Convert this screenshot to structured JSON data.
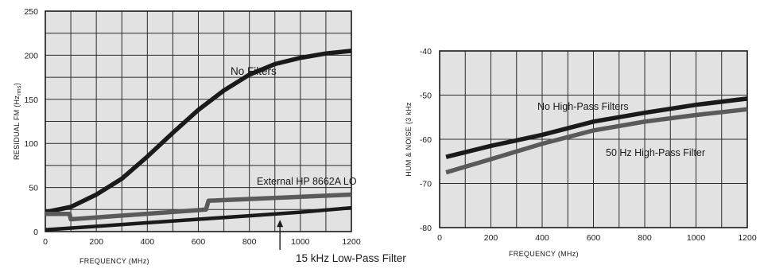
{
  "chart_data": [
    {
      "type": "line",
      "title": "",
      "xlabel": "FREQUENCY (MHz)",
      "ylabel": "RESIDUAL FM (Hz",
      "ylabel_sub": "rms",
      "ylabel_close": ")",
      "xlim": [
        0,
        1200
      ],
      "ylim": [
        0,
        250
      ],
      "xticks": [
        0,
        200,
        400,
        600,
        800,
        1000,
        1200
      ],
      "yticks": [
        0,
        50,
        100,
        150,
        200,
        250
      ],
      "grid": true,
      "series": [
        {
          "name": "No Filters",
          "color": "#1a1a1a",
          "points": [
            [
              0,
              22
            ],
            [
              100,
              28
            ],
            [
              200,
              42
            ],
            [
              300,
              60
            ],
            [
              400,
              85
            ],
            [
              500,
              112
            ],
            [
              600,
              138
            ],
            [
              700,
              160
            ],
            [
              800,
              178
            ],
            [
              900,
              190
            ],
            [
              1000,
              197
            ],
            [
              1100,
              202
            ],
            [
              1200,
              205
            ]
          ]
        },
        {
          "name": "External HP 8662A LO",
          "color": "#5a5a5a",
          "points": [
            [
              0,
              20
            ],
            [
              95,
              20
            ],
            [
              100,
              14
            ],
            [
              630,
              25
            ],
            [
              640,
              35
            ],
            [
              1200,
              42
            ]
          ]
        },
        {
          "name": "15 kHz Low-Pass Filter",
          "color": "#1a1a1a",
          "points": [
            [
              0,
              2
            ],
            [
              200,
              6
            ],
            [
              400,
              10
            ],
            [
              600,
              14
            ],
            [
              800,
              18
            ],
            [
              1000,
              22
            ],
            [
              1200,
              27
            ]
          ]
        }
      ],
      "annotations": [
        {
          "text": "No Filters",
          "x": 430,
          "y": 180
        },
        {
          "text": "External HP 8662A LO",
          "x": 800,
          "y": 51
        },
        {
          "text": "15 kHz Low-Pass Filter",
          "x": 920,
          "y": -35
        }
      ]
    },
    {
      "type": "line",
      "title": "",
      "xlabel": "FREQUENCY (MHz)",
      "ylabel": "HUM & NOISE (3 kHz",
      "xlim": [
        0,
        1200
      ],
      "ylim": [
        -80,
        -40
      ],
      "xticks": [
        0,
        200,
        400,
        600,
        800,
        1000,
        1200
      ],
      "yticks": [
        -40,
        -50,
        -60,
        -70,
        -80
      ],
      "grid": true,
      "series": [
        {
          "name": "No High-Pass Filters",
          "color": "#1a1a1a",
          "points": [
            [
              25,
              -64
            ],
            [
              200,
              -61.5
            ],
            [
              400,
              -59
            ],
            [
              600,
              -56
            ],
            [
              800,
              -54
            ],
            [
              1000,
              -52.2
            ],
            [
              1200,
              -50.8
            ]
          ]
        },
        {
          "name": "50 Hz High-Pass Filter",
          "color": "#5a5a5a",
          "points": [
            [
              25,
              -67.5
            ],
            [
              200,
              -64.5
            ],
            [
              400,
              -61
            ],
            [
              600,
              -58
            ],
            [
              800,
              -56
            ],
            [
              1000,
              -54.5
            ],
            [
              1200,
              -53.2
            ]
          ]
        }
      ],
      "annotations": [
        {
          "text": "No High-Pass Filters",
          "x": 440,
          "y": -53
        },
        {
          "text": "50 Hz High-Pass Filter",
          "x": 740,
          "y": -63.5
        }
      ]
    }
  ]
}
